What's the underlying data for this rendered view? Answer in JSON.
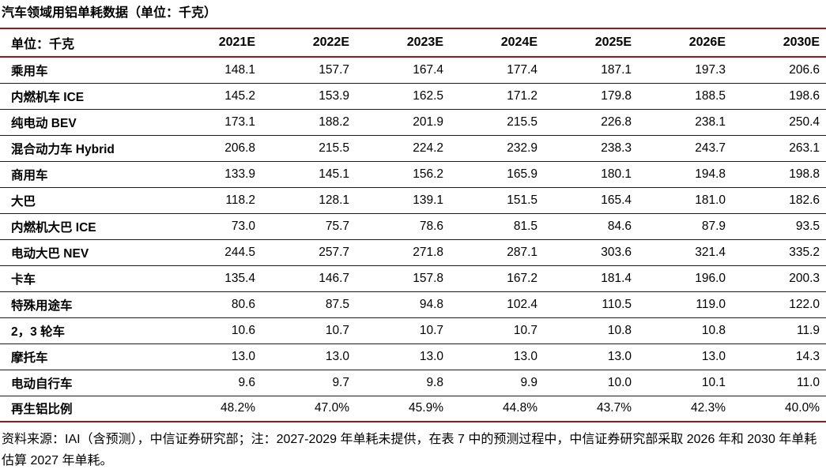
{
  "title": "汽车领域用铝单耗数据（单位：千克）",
  "table": {
    "header": [
      "单位：千克",
      "2021E",
      "2022E",
      "2023E",
      "2024E",
      "2025E",
      "2026E",
      "2030E"
    ],
    "rows": [
      {
        "label": "乘用车",
        "values": [
          "148.1",
          "157.7",
          "167.4",
          "177.4",
          "187.1",
          "197.3",
          "206.6"
        ]
      },
      {
        "label": "内燃机车 ICE",
        "values": [
          "145.2",
          "153.9",
          "162.5",
          "171.2",
          "179.8",
          "188.5",
          "198.6"
        ]
      },
      {
        "label": "纯电动 BEV",
        "values": [
          "173.1",
          "188.2",
          "201.9",
          "215.5",
          "226.8",
          "238.1",
          "250.4"
        ]
      },
      {
        "label": "混合动力车 Hybrid",
        "values": [
          "206.8",
          "215.5",
          "224.2",
          "232.9",
          "238.3",
          "243.7",
          "263.1"
        ]
      },
      {
        "label": "商用车",
        "values": [
          "133.9",
          "145.1",
          "156.2",
          "165.9",
          "180.1",
          "194.8",
          "198.8"
        ]
      },
      {
        "label": "大巴",
        "values": [
          "118.2",
          "128.1",
          "139.1",
          "151.5",
          "165.4",
          "181.0",
          "182.6"
        ]
      },
      {
        "label": "内燃机大巴 ICE",
        "values": [
          "73.0",
          "75.7",
          "78.6",
          "81.5",
          "84.6",
          "87.9",
          "93.5"
        ]
      },
      {
        "label": "电动大巴 NEV",
        "values": [
          "244.5",
          "257.7",
          "271.8",
          "287.1",
          "303.6",
          "321.4",
          "335.2"
        ]
      },
      {
        "label": "卡车",
        "values": [
          "135.4",
          "146.7",
          "157.8",
          "167.2",
          "181.4",
          "196.0",
          "200.3"
        ]
      },
      {
        "label": "特殊用途车",
        "values": [
          "80.6",
          "87.5",
          "94.8",
          "102.4",
          "110.5",
          "119.0",
          "122.0"
        ]
      },
      {
        "label": "2，3 轮车",
        "values": [
          "10.6",
          "10.7",
          "10.7",
          "10.7",
          "10.8",
          "10.8",
          "11.9"
        ]
      },
      {
        "label": "摩托车",
        "values": [
          "13.0",
          "13.0",
          "13.0",
          "13.0",
          "13.0",
          "13.0",
          "14.3"
        ]
      },
      {
        "label": "电动自行车",
        "values": [
          "9.6",
          "9.7",
          "9.8",
          "9.9",
          "10.0",
          "10.1",
          "11.0"
        ]
      },
      {
        "label": "再生铝比例",
        "values": [
          "48.2%",
          "47.0%",
          "45.9%",
          "44.8%",
          "43.7%",
          "42.3%",
          "40.0%"
        ]
      }
    ]
  },
  "footnote": "资料来源：IAI（含预测），中信证券研究部；注：2027-2029 年单耗未提供，在表 7 中的预测过程中，中信证券研究部采取 2026 年和 2030 年单耗估算 2027 年单耗。",
  "colors": {
    "accent_rule": "#A21515",
    "row_separator": "#1A1A1A",
    "text": "#000000",
    "background": "#FFFFFF"
  }
}
